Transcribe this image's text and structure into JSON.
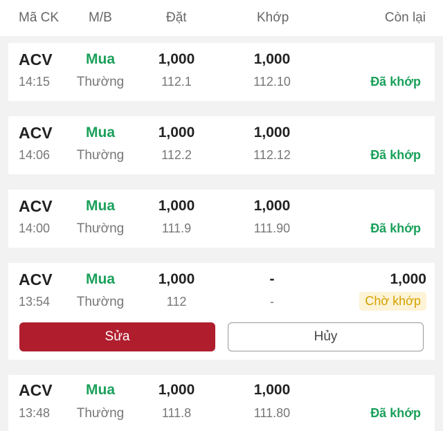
{
  "header": {
    "symbol": "Mã CK",
    "side": "M/B",
    "order": "Đặt",
    "matched": "Khớp",
    "remaining": "Còn lại"
  },
  "orders": [
    {
      "symbol": "ACV",
      "time": "14:15",
      "side": "Mua",
      "type": "Thường",
      "order_qty": "1,000",
      "order_price": "112.1",
      "match_qty": "1,000",
      "match_price": "112.10",
      "remaining": "",
      "status": "Đã khớp"
    },
    {
      "symbol": "ACV",
      "time": "14:06",
      "side": "Mua",
      "type": "Thường",
      "order_qty": "1,000",
      "order_price": "112.2",
      "match_qty": "1,000",
      "match_price": "112.12",
      "remaining": "",
      "status": "Đã khớp"
    },
    {
      "symbol": "ACV",
      "time": "14:00",
      "side": "Mua",
      "type": "Thường",
      "order_qty": "1,000",
      "order_price": "111.9",
      "match_qty": "1,000",
      "match_price": "111.90",
      "remaining": "",
      "status": "Đã khớp"
    },
    {
      "symbol": "ACV",
      "time": "13:54",
      "side": "Mua",
      "type": "Thường",
      "order_qty": "1,000",
      "order_price": "112",
      "match_qty": "-",
      "match_price": "-",
      "remaining": "1,000",
      "status": "Chờ khớp"
    },
    {
      "symbol": "ACV",
      "time": "13:48",
      "side": "Mua",
      "type": "Thường",
      "order_qty": "1,000",
      "order_price": "111.8",
      "match_qty": "1,000",
      "match_price": "111.80",
      "remaining": "",
      "status": "Đã khớp"
    }
  ],
  "actions": {
    "edit_label": "Sửa",
    "cancel_label": "Hủy"
  },
  "colors": {
    "buy": "#1aa05a",
    "matched": "#1aa05a",
    "pending": "#d4a100",
    "pending_bg": "#fdf3d6",
    "edit_button": "#b01e2e"
  }
}
